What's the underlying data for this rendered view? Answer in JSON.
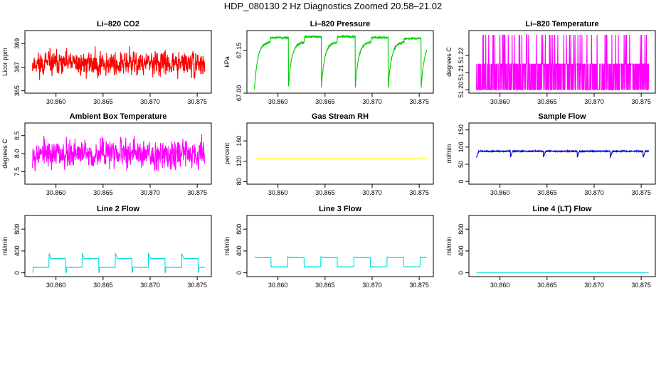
{
  "figure": {
    "title": "HDP_080130  2 Hz Diagnostics Zoomed 20.58–21.02"
  },
  "chart_data": [
    {
      "type": "line",
      "title": "Li–820 CO2",
      "ylabel": "Licor ppm",
      "color": "#ff0000",
      "xlim": [
        30.8567,
        30.8765
      ],
      "ylim": [
        364.8,
        370.1
      ],
      "xticks": [
        "30.860",
        "30.865",
        "30.870",
        "30.875"
      ],
      "xtick_values": [
        30.86,
        30.865,
        30.87,
        30.875
      ],
      "yticks": [
        "365",
        "367",
        "369"
      ],
      "ytick_values": [
        365,
        367,
        369
      ],
      "pattern": "noise",
      "x_range": [
        30.8575,
        30.8758
      ],
      "baseline": 367.3,
      "amplitude": 1.1,
      "seed": 11
    },
    {
      "type": "line",
      "title": "Li–820 Pressure",
      "ylabel": "kPa",
      "color": "#00cc00",
      "xlim": [
        30.8567,
        30.8765
      ],
      "ylim": [
        67.0,
        67.22
      ],
      "xticks": [
        "30.860",
        "30.865",
        "30.870",
        "30.875"
      ],
      "xtick_values": [
        30.86,
        30.865,
        30.87,
        30.875
      ],
      "yticks": [
        "67.00",
        "67.15"
      ],
      "ytick_values": [
        67.0,
        67.15
      ],
      "pattern": "pressure",
      "x_range": [
        30.8575,
        30.8758
      ],
      "cycle_starts": [
        30.8575,
        30.8611,
        30.8646,
        30.8682,
        30.8717,
        30.8752
      ],
      "low": 67.015,
      "high": 67.2,
      "seed": 23
    },
    {
      "type": "line",
      "title": "Li–820 Temperature",
      "ylabel": "degrees C",
      "color": "#ff00ff",
      "xlim": [
        30.8567,
        30.8765
      ],
      "ylim": [
        51.198,
        51.2345
      ],
      "xticks": [
        "30.860",
        "30.865",
        "30.870",
        "30.875"
      ],
      "xtick_values": [
        30.86,
        30.865,
        30.87,
        30.875
      ],
      "yticks": [
        "51.20",
        "51.21",
        "51.22"
      ],
      "ytick_values": [
        51.2,
        51.21,
        51.22
      ],
      "pattern": "quantized",
      "x_range": [
        30.8575,
        30.8758
      ],
      "levels": [
        51.2,
        51.215,
        51.232
      ],
      "seed": 37
    },
    {
      "type": "line",
      "title": "Ambient Box Temperature",
      "ylabel": "degrees C",
      "color": "#ff00ff",
      "xlim": [
        30.8567,
        30.8765
      ],
      "ylim": [
        7.15,
        8.85
      ],
      "xticks": [
        "30.860",
        "30.865",
        "30.870",
        "30.875"
      ],
      "xtick_values": [
        30.86,
        30.865,
        30.87,
        30.875
      ],
      "yticks": [
        "7.5",
        "8.0",
        "8.5"
      ],
      "ytick_values": [
        7.5,
        8.0,
        8.5
      ],
      "pattern": "noise",
      "x_range": [
        30.8575,
        30.8758
      ],
      "baseline": 8.0,
      "amplitude": 0.42,
      "seed": 53
    },
    {
      "type": "line",
      "title": "Gas Stream RH",
      "ylabel": "percent",
      "color": "#ffff00",
      "xlim": [
        30.8567,
        30.8765
      ],
      "ylim": [
        75,
        195
      ],
      "xticks": [
        "30.860",
        "30.865",
        "30.870",
        "30.875"
      ],
      "xtick_values": [
        30.86,
        30.865,
        30.87,
        30.875
      ],
      "yticks": [
        "80",
        "120",
        "160"
      ],
      "ytick_values": [
        80,
        120,
        160
      ],
      "pattern": "flat",
      "x_range": [
        30.8575,
        30.8758
      ],
      "value": 125,
      "seed": 1
    },
    {
      "type": "line",
      "title": "Sample Flow",
      "ylabel": "ml/min",
      "color": "#0000cc",
      "xlim": [
        30.8567,
        30.8765
      ],
      "ylim": [
        -8,
        170
      ],
      "xticks": [
        "30.860",
        "30.865",
        "30.870",
        "30.875"
      ],
      "xtick_values": [
        30.86,
        30.865,
        30.87,
        30.875
      ],
      "yticks": [
        "0",
        "50",
        "100",
        "150"
      ],
      "ytick_values": [
        0,
        50,
        100,
        150
      ],
      "pattern": "sampleflow",
      "x_range": [
        30.8575,
        30.8758
      ],
      "value": 88,
      "dips": [
        30.8575,
        30.8611,
        30.8646,
        30.8682,
        30.8717,
        30.8752
      ],
      "seed": 71
    },
    {
      "type": "line",
      "title": "Line 2 Flow",
      "ylabel": "ml/min",
      "color": "#00dddd",
      "xlim": [
        30.8567,
        30.8765
      ],
      "ylim": [
        -70,
        1050
      ],
      "xticks": [
        "30.860",
        "30.865",
        "30.870",
        "30.875"
      ],
      "xtick_values": [
        30.86,
        30.865,
        30.87,
        30.875
      ],
      "yticks": [
        "0",
        "400",
        "800"
      ],
      "ytick_values": [
        0,
        400,
        800
      ],
      "pattern": "square",
      "x_range": [
        30.8575,
        30.8758
      ],
      "period": 0.00352,
      "phase_start": 30.8575,
      "high_first": false,
      "low": 100,
      "high": 260,
      "overshoot": 360,
      "dropout": 10,
      "seed": 89
    },
    {
      "type": "line",
      "title": "Line 3 Flow",
      "ylabel": "ml/min",
      "color": "#00dddd",
      "xlim": [
        30.8567,
        30.8765
      ],
      "ylim": [
        -70,
        1050
      ],
      "xticks": [
        "30.860",
        "30.865",
        "30.870",
        "30.875"
      ],
      "xtick_values": [
        30.86,
        30.865,
        30.87,
        30.875
      ],
      "yticks": [
        "0",
        "400",
        "800"
      ],
      "ytick_values": [
        0,
        400,
        800
      ],
      "pattern": "square",
      "x_range": [
        30.8575,
        30.8758
      ],
      "period": 0.00352,
      "phase_start": 30.8575,
      "high_first": true,
      "low": 110,
      "high": 280,
      "overshoot": 290,
      "dropout": 110,
      "seed": 97
    },
    {
      "type": "line",
      "title": "Line 4 (LT) Flow",
      "ylabel": "ml/min",
      "color": "#00dddd",
      "xlim": [
        30.8567,
        30.8765
      ],
      "ylim": [
        -70,
        1050
      ],
      "xticks": [
        "30.860",
        "30.865",
        "30.870",
        "30.875"
      ],
      "xtick_values": [
        30.86,
        30.865,
        30.87,
        30.875
      ],
      "yticks": [
        "0",
        "400",
        "800"
      ],
      "ytick_values": [
        0,
        400,
        800
      ],
      "pattern": "flat",
      "x_range": [
        30.8575,
        30.8758
      ],
      "value": 0,
      "seed": 2
    }
  ]
}
